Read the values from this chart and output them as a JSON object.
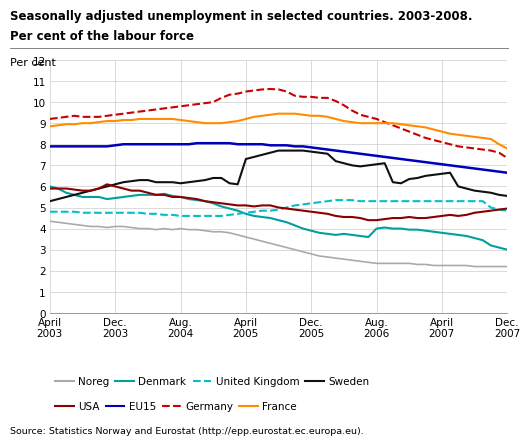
{
  "title_line1": "Seasonally adjusted unemployment in selected countries. 2003-2008.",
  "title_line2": "Per cent of the labour force",
  "ylabel": "Per cent",
  "source": "Source: Statistics Norway and Eurostat (http://epp.eurostat.ec.europa.eu).",
  "ylim": [
    0,
    12
  ],
  "yticks": [
    0,
    1,
    2,
    3,
    4,
    5,
    6,
    7,
    8,
    9,
    10,
    11,
    12
  ],
  "x_tick_labels": [
    "April\n2003",
    "Dec.\n2003",
    "Aug.\n2004",
    "April\n2005",
    "Dec.\n2005",
    "Aug.\n2006",
    "April\n2007",
    "Dec.\n2007"
  ],
  "tick_positions": [
    0,
    8,
    16,
    24,
    32,
    40,
    48,
    56
  ],
  "n_points": 57,
  "series": {
    "Noreg": {
      "color": "#aaaaaa",
      "linestyle": "-",
      "linewidth": 1.2,
      "values": [
        4.35,
        4.3,
        4.25,
        4.2,
        4.15,
        4.1,
        4.1,
        4.05,
        4.1,
        4.1,
        4.05,
        4.0,
        4.0,
        3.95,
        4.0,
        3.95,
        4.0,
        3.95,
        3.95,
        3.9,
        3.85,
        3.85,
        3.8,
        3.7,
        3.6,
        3.5,
        3.4,
        3.3,
        3.2,
        3.1,
        3.0,
        2.9,
        2.8,
        2.7,
        2.65,
        2.6,
        2.55,
        2.5,
        2.45,
        2.4,
        2.35,
        2.35,
        2.35,
        2.35,
        2.35,
        2.3,
        2.3,
        2.25,
        2.25,
        2.25,
        2.25,
        2.25,
        2.2,
        2.2,
        2.2,
        2.2,
        2.2
      ]
    },
    "Denmark": {
      "color": "#00a0a0",
      "linestyle": "-",
      "linewidth": 1.5,
      "values": [
        6.0,
        5.9,
        5.7,
        5.6,
        5.5,
        5.5,
        5.5,
        5.4,
        5.45,
        5.5,
        5.55,
        5.6,
        5.6,
        5.6,
        5.65,
        5.55,
        5.5,
        5.4,
        5.35,
        5.3,
        5.2,
        5.05,
        4.95,
        4.85,
        4.7,
        4.6,
        4.55,
        4.5,
        4.4,
        4.3,
        4.15,
        4.0,
        3.9,
        3.8,
        3.75,
        3.7,
        3.75,
        3.7,
        3.65,
        3.6,
        4.0,
        4.05,
        4.0,
        4.0,
        3.95,
        3.95,
        3.9,
        3.85,
        3.8,
        3.75,
        3.7,
        3.65,
        3.55,
        3.45,
        3.2,
        3.1,
        3.0
      ]
    },
    "United Kingdom": {
      "color": "#00c0c8",
      "linestyle": "--",
      "linewidth": 1.5,
      "values": [
        4.8,
        4.8,
        4.8,
        4.8,
        4.75,
        4.75,
        4.75,
        4.75,
        4.75,
        4.75,
        4.75,
        4.75,
        4.7,
        4.7,
        4.65,
        4.65,
        4.6,
        4.6,
        4.6,
        4.6,
        4.6,
        4.6,
        4.65,
        4.7,
        4.75,
        4.8,
        4.85,
        4.85,
        4.9,
        5.0,
        5.1,
        5.15,
        5.2,
        5.25,
        5.3,
        5.35,
        5.35,
        5.35,
        5.3,
        5.3,
        5.3,
        5.3,
        5.3,
        5.3,
        5.3,
        5.3,
        5.3,
        5.3,
        5.3,
        5.3,
        5.3,
        5.3,
        5.3,
        5.3,
        5.0,
        4.9,
        4.85
      ]
    },
    "Sweden": {
      "color": "#111111",
      "linestyle": "-",
      "linewidth": 1.5,
      "values": [
        5.3,
        5.4,
        5.5,
        5.6,
        5.7,
        5.8,
        5.9,
        6.0,
        6.1,
        6.2,
        6.25,
        6.3,
        6.3,
        6.2,
        6.2,
        6.2,
        6.15,
        6.2,
        6.25,
        6.3,
        6.4,
        6.4,
        6.15,
        6.1,
        7.3,
        7.4,
        7.5,
        7.6,
        7.7,
        7.7,
        7.7,
        7.7,
        7.65,
        7.6,
        7.55,
        7.2,
        7.1,
        7.0,
        6.95,
        7.0,
        7.05,
        7.1,
        6.2,
        6.15,
        6.35,
        6.4,
        6.5,
        6.55,
        6.6,
        6.65,
        6.0,
        5.9,
        5.8,
        5.75,
        5.7,
        5.6,
        5.55
      ]
    },
    "USA": {
      "color": "#8b0000",
      "linestyle": "-",
      "linewidth": 1.5,
      "values": [
        5.9,
        5.9,
        5.9,
        5.85,
        5.8,
        5.8,
        5.9,
        6.1,
        6.0,
        5.9,
        5.8,
        5.8,
        5.7,
        5.6,
        5.6,
        5.5,
        5.5,
        5.45,
        5.4,
        5.3,
        5.25,
        5.2,
        5.15,
        5.1,
        5.1,
        5.05,
        5.1,
        5.1,
        5.0,
        4.95,
        4.9,
        4.85,
        4.8,
        4.75,
        4.7,
        4.6,
        4.55,
        4.55,
        4.5,
        4.4,
        4.4,
        4.45,
        4.5,
        4.5,
        4.55,
        4.5,
        4.5,
        4.55,
        4.6,
        4.65,
        4.6,
        4.65,
        4.75,
        4.8,
        4.85,
        4.9,
        4.95
      ]
    },
    "EU15": {
      "color": "#0000bb",
      "linestyle": "-",
      "linewidth": 1.8,
      "values": [
        7.9,
        7.9,
        7.9,
        7.9,
        7.9,
        7.9,
        7.9,
        7.9,
        7.95,
        8.0,
        8.0,
        8.0,
        8.0,
        8.0,
        8.0,
        8.0,
        8.0,
        8.0,
        8.05,
        8.05,
        8.05,
        8.05,
        8.05,
        8.0,
        8.0,
        8.0,
        8.0,
        7.95,
        7.95,
        7.95,
        7.9,
        7.9,
        7.85,
        7.8,
        7.75,
        7.7,
        7.65,
        7.6,
        7.55,
        7.5,
        7.45,
        7.4,
        7.35,
        7.3,
        7.25,
        7.2,
        7.15,
        7.1,
        7.05,
        7.0,
        6.95,
        6.9,
        6.85,
        6.8,
        6.75,
        6.7,
        6.65
      ]
    },
    "Germany": {
      "color": "#cc0000",
      "linestyle": "--",
      "linewidth": 1.5,
      "values": [
        9.2,
        9.25,
        9.3,
        9.35,
        9.3,
        9.3,
        9.3,
        9.35,
        9.4,
        9.45,
        9.5,
        9.55,
        9.6,
        9.65,
        9.7,
        9.75,
        9.8,
        9.85,
        9.9,
        9.95,
        10.0,
        10.2,
        10.35,
        10.4,
        10.5,
        10.55,
        10.6,
        10.62,
        10.6,
        10.5,
        10.3,
        10.25,
        10.25,
        10.2,
        10.2,
        10.05,
        9.85,
        9.6,
        9.4,
        9.3,
        9.2,
        9.05,
        8.9,
        8.75,
        8.6,
        8.45,
        8.3,
        8.2,
        8.1,
        8.0,
        7.9,
        7.85,
        7.8,
        7.75,
        7.7,
        7.6,
        7.35
      ]
    },
    "France": {
      "color": "#ff8c00",
      "linestyle": "-",
      "linewidth": 1.5,
      "values": [
        8.85,
        8.9,
        8.95,
        8.95,
        9.0,
        9.0,
        9.05,
        9.1,
        9.1,
        9.15,
        9.15,
        9.2,
        9.2,
        9.2,
        9.2,
        9.2,
        9.15,
        9.1,
        9.05,
        9.0,
        9.0,
        9.0,
        9.05,
        9.1,
        9.2,
        9.3,
        9.35,
        9.4,
        9.45,
        9.45,
        9.45,
        9.4,
        9.35,
        9.35,
        9.3,
        9.2,
        9.1,
        9.05,
        9.0,
        9.0,
        9.0,
        9.0,
        9.0,
        8.95,
        8.9,
        8.85,
        8.8,
        8.7,
        8.6,
        8.5,
        8.45,
        8.4,
        8.35,
        8.3,
        8.25,
        8.0,
        7.8
      ]
    }
  },
  "legend_row1": [
    {
      "label": "Noreg",
      "color": "#aaaaaa",
      "linestyle": "-"
    },
    {
      "label": "Denmark",
      "color": "#00a0a0",
      "linestyle": "-"
    },
    {
      "label": "United Kingdom",
      "color": "#00c0c8",
      "linestyle": "--"
    },
    {
      "label": "Sweden",
      "color": "#111111",
      "linestyle": "-"
    }
  ],
  "legend_row2": [
    {
      "label": "USA",
      "color": "#8b0000",
      "linestyle": "-"
    },
    {
      "label": "EU15",
      "color": "#0000bb",
      "linestyle": "-"
    },
    {
      "label": "Germany",
      "color": "#cc0000",
      "linestyle": "--"
    },
    {
      "label": "France",
      "color": "#ff8c00",
      "linestyle": "-"
    }
  ]
}
